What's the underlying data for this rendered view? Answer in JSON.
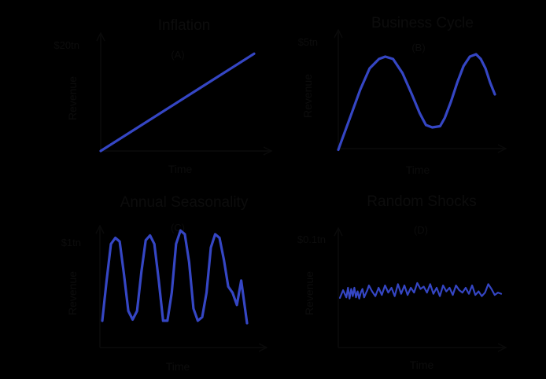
{
  "colors": {
    "background": "#000000",
    "axis": "#0a0a0a",
    "series": "#3546c4",
    "text": "#0c0c0c"
  },
  "chart_data": [
    {
      "type": "line",
      "title": "Inflation",
      "subtitle": "(A)",
      "xlabel": "Time",
      "ylabel": "Revenue",
      "ymax_label": "$20tn",
      "ylim": [
        0,
        20
      ],
      "xlim": [
        0,
        1
      ],
      "series": [
        {
          "x": [
            0,
            1
          ],
          "y": [
            0,
            16.5
          ]
        }
      ]
    },
    {
      "type": "line",
      "title": "Business Cycle",
      "subtitle": "(B)",
      "xlabel": "Time",
      "ylabel": "Revenue",
      "ymax_label": "$5tn",
      "ylim": [
        0,
        5
      ],
      "xlim": [
        0,
        1
      ],
      "series": [
        {
          "x": [
            0,
            0.03,
            0.08,
            0.14,
            0.2,
            0.26,
            0.3,
            0.35,
            0.41,
            0.47,
            0.52,
            0.56,
            0.6,
            0.65,
            0.68,
            0.72,
            0.76,
            0.8,
            0.84,
            0.88,
            0.91,
            0.94,
            0.97,
            1
          ],
          "y": [
            0.05,
            0.6,
            1.5,
            2.6,
            3.5,
            3.9,
            4.0,
            3.9,
            3.3,
            2.4,
            1.6,
            1.1,
            1.0,
            1.05,
            1.4,
            2.1,
            2.9,
            3.6,
            4.0,
            4.1,
            3.9,
            3.5,
            2.9,
            2.4
          ]
        }
      ]
    },
    {
      "type": "line",
      "title": "Annual Seasonality",
      "subtitle": "(C)",
      "xlabel": "Time",
      "ylabel": "Revenue",
      "ymax_label": "$1tn",
      "ylim": [
        0,
        1
      ],
      "xlim": [
        0,
        1
      ],
      "series": [
        {
          "x": [
            0,
            0.03,
            0.06,
            0.09,
            0.12,
            0.15,
            0.18,
            0.21,
            0.24,
            0.27,
            0.3,
            0.33,
            0.36,
            0.39,
            0.42,
            0.45,
            0.48,
            0.51,
            0.54,
            0.57,
            0.6,
            0.63,
            0.66,
            0.69,
            0.72,
            0.75,
            0.78,
            0.81,
            0.84,
            0.87,
            0.9,
            0.93,
            0.96,
            1
          ],
          "y": [
            0.22,
            0.55,
            0.85,
            0.9,
            0.87,
            0.6,
            0.3,
            0.23,
            0.3,
            0.62,
            0.88,
            0.92,
            0.85,
            0.55,
            0.22,
            0.22,
            0.45,
            0.85,
            0.96,
            0.93,
            0.7,
            0.32,
            0.22,
            0.25,
            0.45,
            0.82,
            0.93,
            0.9,
            0.72,
            0.5,
            0.45,
            0.35,
            0.55,
            0.2
          ]
        }
      ]
    },
    {
      "type": "line",
      "title": "Random Shocks",
      "subtitle": "(D)",
      "xlabel": "Time",
      "ylabel": "Revenue",
      "ymax_label": "$0.1tn",
      "ylim": [
        0,
        0.1
      ],
      "xlim": [
        0,
        1
      ],
      "series": [
        {
          "x": [
            0,
            0.02,
            0.04,
            0.05,
            0.06,
            0.07,
            0.08,
            0.09,
            0.1,
            0.11,
            0.12,
            0.13,
            0.14,
            0.15,
            0.16,
            0.17,
            0.18,
            0.2,
            0.22,
            0.24,
            0.26,
            0.28,
            0.3,
            0.32,
            0.34,
            0.36,
            0.38,
            0.4,
            0.42,
            0.44,
            0.46,
            0.48,
            0.5,
            0.52,
            0.54,
            0.56,
            0.58,
            0.6,
            0.62,
            0.64,
            0.66,
            0.68,
            0.7,
            0.72,
            0.74,
            0.76,
            0.78,
            0.8,
            0.82,
            0.84,
            0.86,
            0.88,
            0.9,
            0.92,
            0.94,
            0.96,
            0.98,
            1
          ],
          "y": [
            0.0415,
            0.048,
            0.042,
            0.05,
            0.041,
            0.049,
            0.043,
            0.05,
            0.042,
            0.047,
            0.041,
            0.046,
            0.049,
            0.042,
            0.045,
            0.048,
            0.052,
            0.047,
            0.043,
            0.05,
            0.044,
            0.052,
            0.046,
            0.05,
            0.043,
            0.053,
            0.045,
            0.052,
            0.044,
            0.05,
            0.046,
            0.054,
            0.049,
            0.051,
            0.046,
            0.053,
            0.045,
            0.05,
            0.043,
            0.052,
            0.047,
            0.05,
            0.044,
            0.052,
            0.048,
            0.046,
            0.05,
            0.045,
            0.052,
            0.044,
            0.047,
            0.043,
            0.046,
            0.053,
            0.049,
            0.044,
            0.046,
            0.045
          ]
        }
      ]
    }
  ]
}
